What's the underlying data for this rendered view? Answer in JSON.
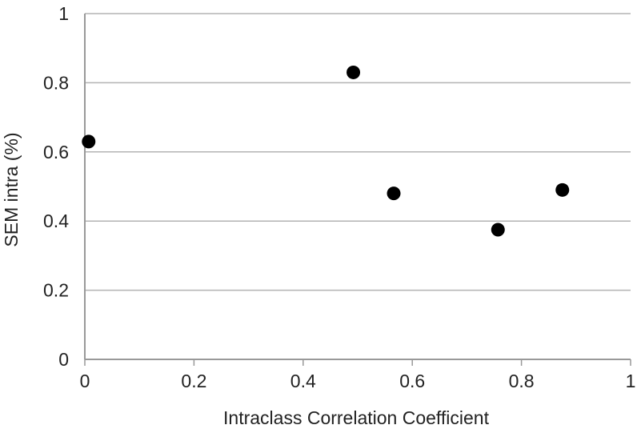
{
  "chart_data": {
    "type": "scatter",
    "title": "",
    "xlabel": "Intraclass Correlation Coefficient",
    "ylabel": "SEM intra (%)",
    "xlim": [
      0,
      1
    ],
    "ylim": [
      0,
      1
    ],
    "x_ticks": [
      0,
      0.2,
      0.4,
      0.6,
      0.8,
      1
    ],
    "y_ticks": [
      0,
      0.2,
      0.4,
      0.6,
      0.8,
      1
    ],
    "x_tick_labels": [
      "0",
      "0.2",
      "0.4",
      "0.6",
      "0.8",
      "1"
    ],
    "y_tick_labels": [
      "0",
      "0.2",
      "0.4",
      "0.6",
      "0.8",
      "1"
    ],
    "grid": "horizontal",
    "legend": "none",
    "marker_color": "#000000",
    "grid_color": "#b3b3b3",
    "points": [
      {
        "x": 0.007,
        "y": 0.63
      },
      {
        "x": 0.492,
        "y": 0.83
      },
      {
        "x": 0.566,
        "y": 0.48
      },
      {
        "x": 0.757,
        "y": 0.375
      },
      {
        "x": 0.875,
        "y": 0.49
      }
    ]
  }
}
